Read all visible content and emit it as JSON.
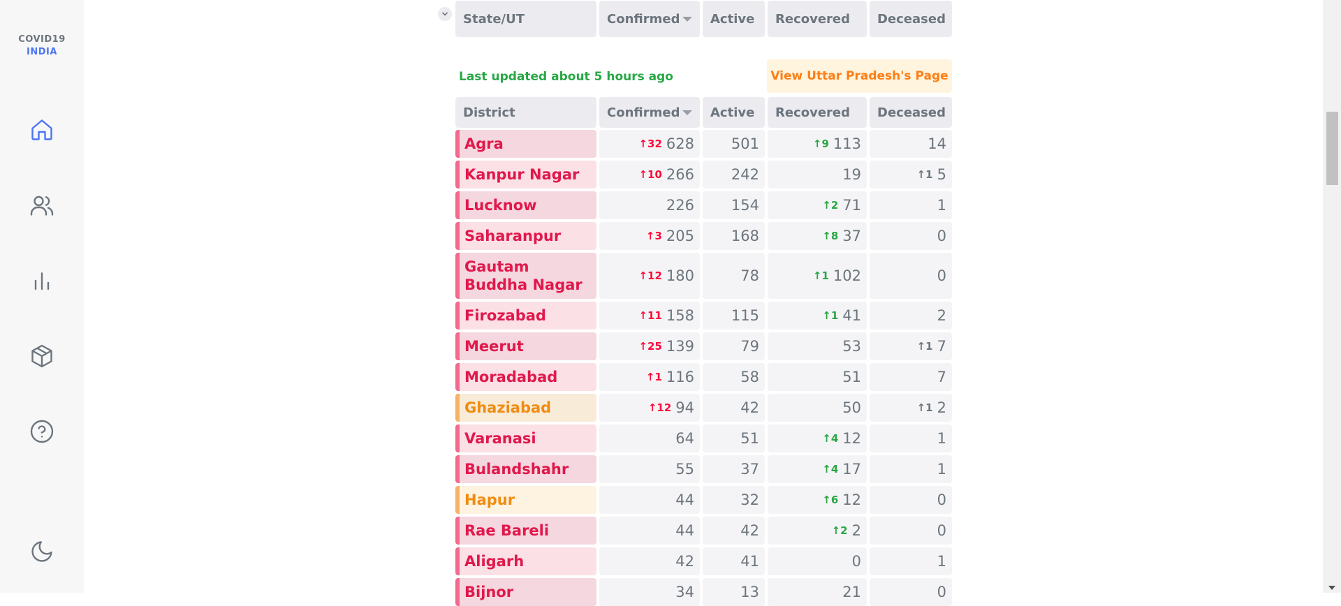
{
  "logo": {
    "line1": "COVID19",
    "line2": "INDIA"
  },
  "sidebar": {
    "items": [
      "home-icon",
      "users-icon",
      "bar-chart-icon",
      "box-icon",
      "help-icon",
      "moon-icon"
    ]
  },
  "state_header": {
    "col1": "State/UT",
    "col2": "Confirmed",
    "col3": "Active",
    "col4": "Recovered",
    "col5": "Deceased"
  },
  "updated_text": "Last updated about 5 hours ago",
  "view_page_label": "View Uttar Pradesh's Page",
  "district_header": {
    "col1": "District",
    "col2": "Confirmed",
    "col3": "Active",
    "col4": "Recovered",
    "col5": "Deceased"
  },
  "colors": {
    "red_text": "#e0184b",
    "orange_text": "#f08c12",
    "red_bar": "#f26a8d",
    "orange_bar": "#f7b365"
  },
  "districts": [
    {
      "name": "Agra",
      "conf_delta": "↑32",
      "confirmed": "628",
      "active": "501",
      "rec_delta": "↑9",
      "recovered": "113",
      "dec_delta": "",
      "deceased": "14",
      "tone": "red",
      "bg": "#f5d7df"
    },
    {
      "name": "Kanpur Nagar",
      "conf_delta": "↑10",
      "confirmed": "266",
      "active": "242",
      "rec_delta": "",
      "recovered": "19",
      "dec_delta": "↑1",
      "deceased": "5",
      "tone": "red",
      "bg": "#fbe0e6"
    },
    {
      "name": "Lucknow",
      "conf_delta": "",
      "confirmed": "226",
      "active": "154",
      "rec_delta": "↑2",
      "recovered": "71",
      "dec_delta": "",
      "deceased": "1",
      "tone": "red",
      "bg": "#f5d7df"
    },
    {
      "name": "Saharanpur",
      "conf_delta": "↑3",
      "confirmed": "205",
      "active": "168",
      "rec_delta": "↑8",
      "recovered": "37",
      "dec_delta": "",
      "deceased": "0",
      "tone": "red",
      "bg": "#fbe0e6"
    },
    {
      "name": "Gautam Buddha Nagar",
      "conf_delta": "↑12",
      "confirmed": "180",
      "active": "78",
      "rec_delta": "↑1",
      "recovered": "102",
      "dec_delta": "",
      "deceased": "0",
      "tone": "red",
      "bg": "#f5d7df"
    },
    {
      "name": "Firozabad",
      "conf_delta": "↑11",
      "confirmed": "158",
      "active": "115",
      "rec_delta": "↑1",
      "recovered": "41",
      "dec_delta": "",
      "deceased": "2",
      "tone": "red",
      "bg": "#fbe0e6"
    },
    {
      "name": "Meerut",
      "conf_delta": "↑25",
      "confirmed": "139",
      "active": "79",
      "rec_delta": "",
      "recovered": "53",
      "dec_delta": "↑1",
      "deceased": "7",
      "tone": "red",
      "bg": "#f5d7df"
    },
    {
      "name": "Moradabad",
      "conf_delta": "↑1",
      "confirmed": "116",
      "active": "58",
      "rec_delta": "",
      "recovered": "51",
      "dec_delta": "",
      "deceased": "7",
      "tone": "red",
      "bg": "#fbe0e6"
    },
    {
      "name": "Ghaziabad",
      "conf_delta": "↑12",
      "confirmed": "94",
      "active": "42",
      "rec_delta": "",
      "recovered": "50",
      "dec_delta": "↑1",
      "deceased": "2",
      "tone": "orange",
      "bg": "#f8ebd8"
    },
    {
      "name": "Varanasi",
      "conf_delta": "",
      "confirmed": "64",
      "active": "51",
      "rec_delta": "↑4",
      "recovered": "12",
      "dec_delta": "",
      "deceased": "1",
      "tone": "red",
      "bg": "#fbe0e6"
    },
    {
      "name": "Bulandshahr",
      "conf_delta": "",
      "confirmed": "55",
      "active": "37",
      "rec_delta": "↑4",
      "recovered": "17",
      "dec_delta": "",
      "deceased": "1",
      "tone": "red",
      "bg": "#f5d7df"
    },
    {
      "name": "Hapur",
      "conf_delta": "",
      "confirmed": "44",
      "active": "32",
      "rec_delta": "↑6",
      "recovered": "12",
      "dec_delta": "",
      "deceased": "0",
      "tone": "orange",
      "bg": "#fdf3e0"
    },
    {
      "name": "Rae Bareli",
      "conf_delta": "",
      "confirmed": "44",
      "active": "42",
      "rec_delta": "↑2",
      "recovered": "2",
      "dec_delta": "",
      "deceased": "0",
      "tone": "red",
      "bg": "#f5d7df"
    },
    {
      "name": "Aligarh",
      "conf_delta": "",
      "confirmed": "42",
      "active": "41",
      "rec_delta": "",
      "recovered": "0",
      "dec_delta": "",
      "deceased": "1",
      "tone": "red",
      "bg": "#fbe0e6"
    },
    {
      "name": "Bijnor",
      "conf_delta": "",
      "confirmed": "34",
      "active": "13",
      "rec_delta": "",
      "recovered": "21",
      "dec_delta": "",
      "deceased": "0",
      "tone": "red",
      "bg": "#f5d7df"
    }
  ]
}
